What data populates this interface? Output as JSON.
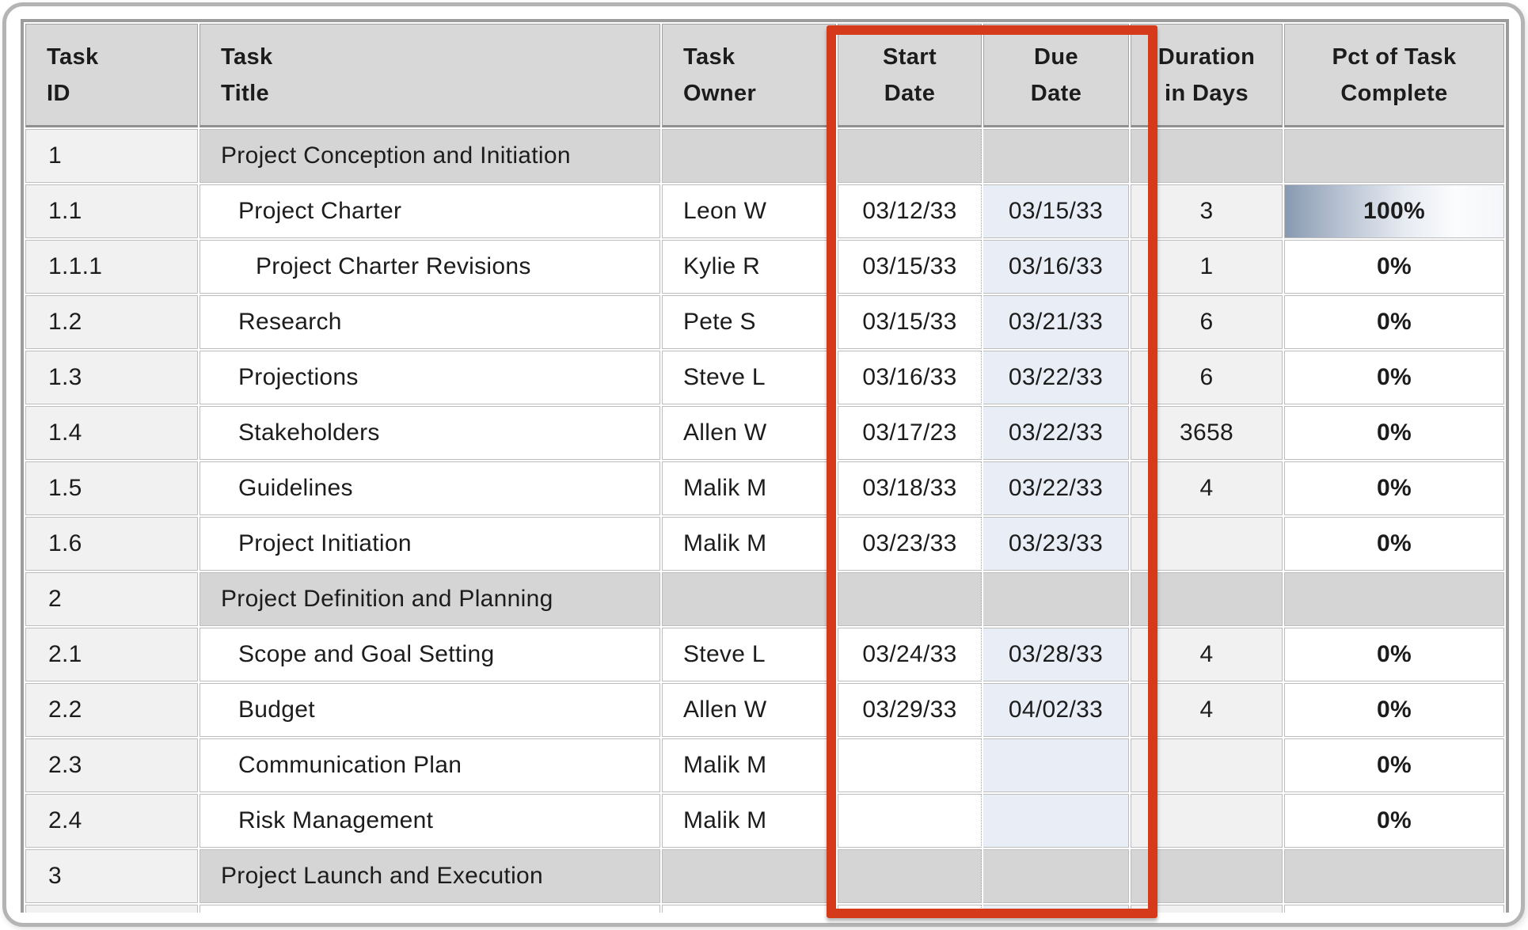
{
  "table": {
    "columns": [
      {
        "key": "id",
        "l1": "Task",
        "l2": "ID"
      },
      {
        "key": "title",
        "l1": "Task",
        "l2": "Title"
      },
      {
        "key": "owner",
        "l1": "Task",
        "l2": "Owner"
      },
      {
        "key": "start",
        "l1": "Start",
        "l2": "Date"
      },
      {
        "key": "due",
        "l1": "Due",
        "l2": "Date"
      },
      {
        "key": "duration",
        "l1": "Duration",
        "l2": "in Days"
      },
      {
        "key": "pct",
        "l1": "Pct of Task",
        "l2": "Complete"
      }
    ],
    "rows": [
      {
        "id": "1",
        "title": "Project Conception and Initiation",
        "owner": "",
        "start": "",
        "due": "",
        "duration": "",
        "pct": "",
        "type": "section",
        "level": 0
      },
      {
        "id": "1.1",
        "title": "Project Charter",
        "owner": "Leon W",
        "start": "03/12/33",
        "due": "03/15/33",
        "duration": "3",
        "pct": "100%",
        "type": "task",
        "level": 1,
        "complete": true
      },
      {
        "id": "1.1.1",
        "title": "Project Charter Revisions",
        "owner": "Kylie R",
        "start": "03/15/33",
        "due": "03/16/33",
        "duration": "1",
        "pct": "0%",
        "type": "task",
        "level": 2
      },
      {
        "id": "1.2",
        "title": "Research",
        "owner": "Pete S",
        "start": "03/15/33",
        "due": "03/21/33",
        "duration": "6",
        "pct": "0%",
        "type": "task",
        "level": 1
      },
      {
        "id": "1.3",
        "title": "Projections",
        "owner": "Steve L",
        "start": "03/16/33",
        "due": "03/22/33",
        "duration": "6",
        "pct": "0%",
        "type": "task",
        "level": 1
      },
      {
        "id": "1.4",
        "title": "Stakeholders",
        "owner": "Allen W",
        "start": "03/17/23",
        "due": "03/22/33",
        "duration": "3658",
        "pct": "0%",
        "type": "task",
        "level": 1
      },
      {
        "id": "1.5",
        "title": "Guidelines",
        "owner": "Malik M",
        "start": "03/18/33",
        "due": "03/22/33",
        "duration": "4",
        "pct": "0%",
        "type": "task",
        "level": 1
      },
      {
        "id": "1.6",
        "title": "Project Initiation",
        "owner": "Malik M",
        "start": "03/23/33",
        "due": "03/23/33",
        "duration": "",
        "pct": "0%",
        "type": "task",
        "level": 1
      },
      {
        "id": "2",
        "title": "Project Definition and Planning",
        "owner": "",
        "start": "",
        "due": "",
        "duration": "",
        "pct": "",
        "type": "section",
        "level": 0
      },
      {
        "id": "2.1",
        "title": "Scope and Goal Setting",
        "owner": "Steve L",
        "start": "03/24/33",
        "due": "03/28/33",
        "duration": "4",
        "pct": "0%",
        "type": "task",
        "level": 1
      },
      {
        "id": "2.2",
        "title": "Budget",
        "owner": "Allen W",
        "start": "03/29/33",
        "due": "04/02/33",
        "duration": "4",
        "pct": "0%",
        "type": "task",
        "level": 1
      },
      {
        "id": "2.3",
        "title": "Communication Plan",
        "owner": "Malik M",
        "start": "",
        "due": "",
        "duration": "",
        "pct": "0%",
        "type": "task",
        "level": 1
      },
      {
        "id": "2.4",
        "title": "Risk Management",
        "owner": "Malik M",
        "start": "",
        "due": "",
        "duration": "",
        "pct": "0%",
        "type": "task",
        "level": 1
      },
      {
        "id": "3",
        "title": "Project Launch and Execution",
        "owner": "",
        "start": "",
        "due": "",
        "duration": "",
        "pct": "",
        "type": "section",
        "level": 0
      },
      {
        "id": "",
        "title": "",
        "owner": "",
        "start": "",
        "due": "",
        "duration": "",
        "pct": "",
        "type": "task",
        "level": 1
      }
    ]
  },
  "annotation": {
    "type": "highlight-rectangle",
    "highlighted_columns": "Start Date and Due Date",
    "color": "#d53a1b"
  },
  "colors": {
    "header_bg": "#d8d8d8",
    "section_row_bg": "#d5d5d5",
    "id_column_bg": "#f1f1f1",
    "due_column_bg": "#e9edf6",
    "duration_column_bg": "#f1f1f1",
    "complete_bar_start": "#8799b1",
    "frame_border": "#b4b4b4",
    "grid_border": "#9c9c9c"
  }
}
